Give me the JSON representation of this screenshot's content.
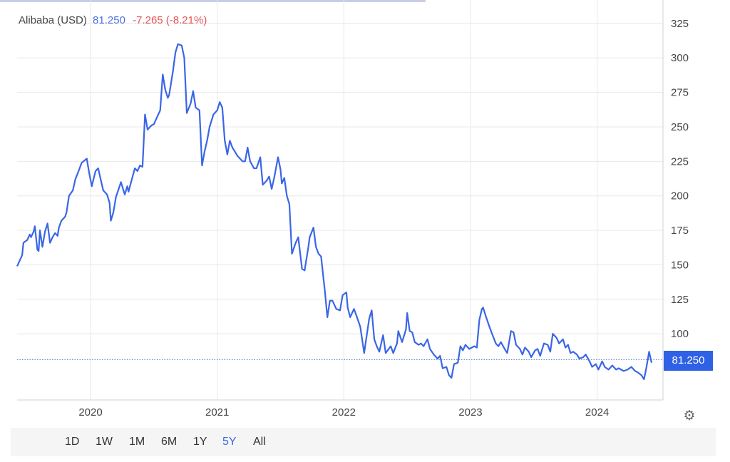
{
  "legend": {
    "name": "Alibaba (USD)",
    "price": "81.250",
    "change": "-7.265 (-8.21%)"
  },
  "price_badge": "81.250",
  "range_buttons": [
    {
      "label": "1D",
      "active": false
    },
    {
      "label": "1W",
      "active": false
    },
    {
      "label": "1M",
      "active": false
    },
    {
      "label": "6M",
      "active": false
    },
    {
      "label": "1Y",
      "active": false
    },
    {
      "label": "5Y",
      "active": true
    },
    {
      "label": "All",
      "active": false
    }
  ],
  "settings_icon": "gear-icon",
  "colors": {
    "line": "#3a66e6",
    "price_text": "#4a6fe8",
    "change_text": "#e25555",
    "badge": "#2f61e6",
    "gridline": "#e8e8e8",
    "reference_line": "#4a7fd0"
  },
  "chart_data": {
    "type": "line",
    "title": "",
    "xlabel": "",
    "ylabel": "",
    "xlim": [
      2019.42,
      2024.52
    ],
    "ylim": [
      52,
      342
    ],
    "y_ticks": [
      100,
      125,
      150,
      175,
      200,
      225,
      250,
      275,
      300,
      325
    ],
    "x_ticks": [
      {
        "label": "2020",
        "value": 2020.0
      },
      {
        "label": "2021",
        "value": 2021.0
      },
      {
        "label": "2022",
        "value": 2022.0
      },
      {
        "label": "2023",
        "value": 2023.0
      },
      {
        "label": "2024",
        "value": 2024.0
      }
    ],
    "reference_line": 81.25,
    "grid": true,
    "y_axis_position": "right",
    "series": [
      {
        "x": [
          2019.42,
          2019.46,
          2019.47,
          2019.5,
          2019.52,
          2019.53,
          2019.55,
          2019.56,
          2019.58,
          2019.59,
          2019.6,
          2019.62,
          2019.64,
          2019.65,
          2019.66,
          2019.68,
          2019.7,
          2019.72,
          2019.74,
          2019.75,
          2019.77,
          2019.8,
          2019.81,
          2019.83,
          2019.86,
          2019.88,
          2019.91,
          2019.93,
          2019.97,
          2019.99,
          2020.01,
          2020.02,
          2020.04,
          2020.06,
          2020.08,
          2020.1,
          2020.13,
          2020.15,
          2020.16,
          2020.18,
          2020.2,
          2020.24,
          2020.26,
          2020.27,
          2020.29,
          2020.3,
          2020.32,
          2020.35,
          2020.37,
          2020.39,
          2020.41,
          2020.43,
          2020.45,
          2020.48,
          2020.5,
          2020.51,
          2020.55,
          2020.57,
          2020.59,
          2020.61,
          2020.62,
          2020.65,
          2020.67,
          2020.69,
          2020.72,
          2020.74,
          2020.76,
          2020.79,
          2020.81,
          2020.83,
          2020.86,
          2020.88,
          2020.9,
          2020.92,
          2020.94,
          2020.97,
          2021.0,
          2021.02,
          2021.04,
          2021.06,
          2021.08,
          2021.1,
          2021.12,
          2021.14,
          2021.16,
          2021.2,
          2021.22,
          2021.24,
          2021.26,
          2021.29,
          2021.31,
          2021.34,
          2021.36,
          2021.39,
          2021.41,
          2021.43,
          2021.45,
          2021.48,
          2021.5,
          2021.51,
          2021.53,
          2021.55,
          2021.57,
          2021.59,
          2021.62,
          2021.64,
          2021.65,
          2021.67,
          2021.69,
          2021.72,
          2021.73,
          2021.76,
          2021.78,
          2021.8,
          2021.82,
          2021.85,
          2021.87,
          2021.89,
          2021.91,
          2021.94,
          2021.97,
          2021.99,
          2022.02,
          2022.03,
          2022.05,
          2022.08,
          2022.1,
          2022.13,
          2022.16,
          2022.2,
          2022.22,
          2022.24,
          2022.26,
          2022.28,
          2022.31,
          2022.33,
          2022.37,
          2022.39,
          2022.42,
          2022.43,
          2022.46,
          2022.49,
          2022.5,
          2022.52,
          2022.54,
          2022.56,
          2022.59,
          2022.61,
          2022.63,
          2022.66,
          2022.68,
          2022.71,
          2022.74,
          2022.76,
          2022.78,
          2022.81,
          2022.83,
          2022.85,
          2022.87,
          2022.9,
          2022.92,
          2022.94,
          2022.96,
          2022.99,
          2023.03,
          2023.05,
          2023.07,
          2023.09,
          2023.1,
          2023.12,
          2023.15,
          2023.17,
          2023.2,
          2023.22,
          2023.24,
          2023.27,
          2023.29,
          2023.32,
          2023.34,
          2023.36,
          2023.39,
          2023.41,
          2023.43,
          2023.46,
          2023.48,
          2023.51,
          2023.53,
          2023.55,
          2023.58,
          2023.61,
          2023.63,
          2023.65,
          2023.68,
          2023.7,
          2023.73,
          2023.75,
          2023.77,
          2023.79,
          2023.81,
          2023.84,
          2023.86,
          2023.89,
          2023.91,
          2023.94,
          2023.96,
          2023.99,
          2024.01,
          2024.04,
          2024.06,
          2024.09,
          2024.12,
          2024.15,
          2024.17,
          2024.21,
          2024.24,
          2024.27,
          2024.3,
          2024.32,
          2024.35,
          2024.37,
          2024.39,
          2024.41,
          2024.43
        ],
        "values": [
          149,
          157,
          166,
          168,
          172,
          170,
          174,
          178,
          161,
          160,
          175,
          163,
          174,
          177,
          180,
          166,
          170,
          173,
          171,
          177,
          182,
          185,
          188,
          200,
          204,
          212,
          219,
          224,
          227,
          216,
          207,
          211,
          218,
          220,
          212,
          204,
          201,
          195,
          182,
          188,
          199,
          210,
          204,
          201,
          207,
          203,
          210,
          220,
          218,
          222,
          221,
          259,
          248,
          251,
          252,
          254,
          262,
          288,
          277,
          271,
          273,
          290,
          304,
          310,
          309,
          300,
          260,
          267,
          276,
          264,
          262,
          222,
          232,
          240,
          250,
          259,
          262,
          268,
          264,
          240,
          230,
          240,
          235,
          232,
          229,
          225,
          225,
          235,
          225,
          220,
          220,
          228,
          208,
          211,
          214,
          205,
          213,
          228,
          219,
          209,
          213,
          200,
          194,
          158,
          166,
          170,
          162,
          147,
          146,
          163,
          170,
          177,
          163,
          158,
          156,
          131,
          112,
          124,
          124,
          118,
          117,
          128,
          130,
          119,
          112,
          118,
          113,
          105,
          86,
          111,
          117,
          96,
          91,
          87,
          99,
          86,
          91,
          86,
          93,
          102,
          94,
          103,
          115,
          102,
          101,
          94,
          92,
          93,
          91,
          96,
          89,
          85,
          82,
          84,
          75,
          76,
          70,
          68,
          78,
          79,
          91,
          88,
          92,
          89,
          91,
          90,
          110,
          118,
          119,
          113,
          105,
          100,
          93,
          91,
          94,
          89,
          86,
          102,
          101,
          92,
          89,
          85,
          90,
          87,
          83,
          88,
          89,
          84,
          93,
          92,
          87,
          100,
          97,
          93,
          96,
          90,
          92,
          86,
          87,
          85,
          82,
          83,
          85,
          80,
          76,
          78,
          74,
          80,
          76,
          74,
          77,
          74,
          75,
          73,
          74,
          76,
          73,
          72,
          70,
          67,
          76,
          87,
          79
        ],
        "line_color": "#3a66e6"
      }
    ]
  }
}
